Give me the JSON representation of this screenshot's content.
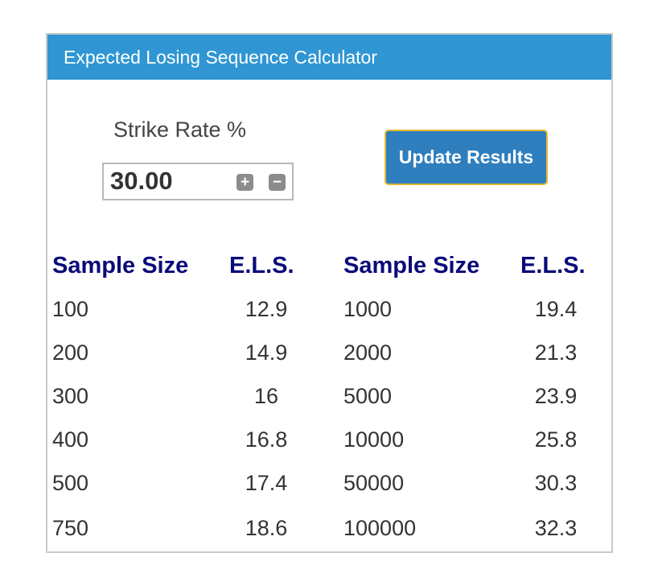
{
  "header": {
    "title": "Expected Losing Sequence Calculator"
  },
  "strike_rate": {
    "label": "Strike Rate %",
    "value": "30.00",
    "plus_symbol": "+",
    "minus_symbol": "−"
  },
  "update_button": {
    "label": "Update Results"
  },
  "table": {
    "headers": [
      "Sample Size",
      "E.L.S.",
      "Sample Size",
      "E.L.S."
    ],
    "left_rows": [
      {
        "sample": "100",
        "els": "12.9"
      },
      {
        "sample": "200",
        "els": "14.9"
      },
      {
        "sample": "300",
        "els": "16"
      },
      {
        "sample": "400",
        "els": "16.8"
      },
      {
        "sample": "500",
        "els": "17.4"
      },
      {
        "sample": "750",
        "els": "18.6"
      }
    ],
    "right_rows": [
      {
        "sample": "1000",
        "els": "19.4"
      },
      {
        "sample": "2000",
        "els": "21.3"
      },
      {
        "sample": "5000",
        "els": "23.9"
      },
      {
        "sample": "10000",
        "els": "25.8"
      },
      {
        "sample": "50000",
        "els": "30.3"
      },
      {
        "sample": "100000",
        "els": "32.3"
      }
    ]
  },
  "colors": {
    "header_bg": "#2f96d3",
    "header_text": "#ffffff",
    "table_header_text": "#0a0a7a",
    "button_bg": "#2f7fbf",
    "button_border": "#e4b92f"
  }
}
